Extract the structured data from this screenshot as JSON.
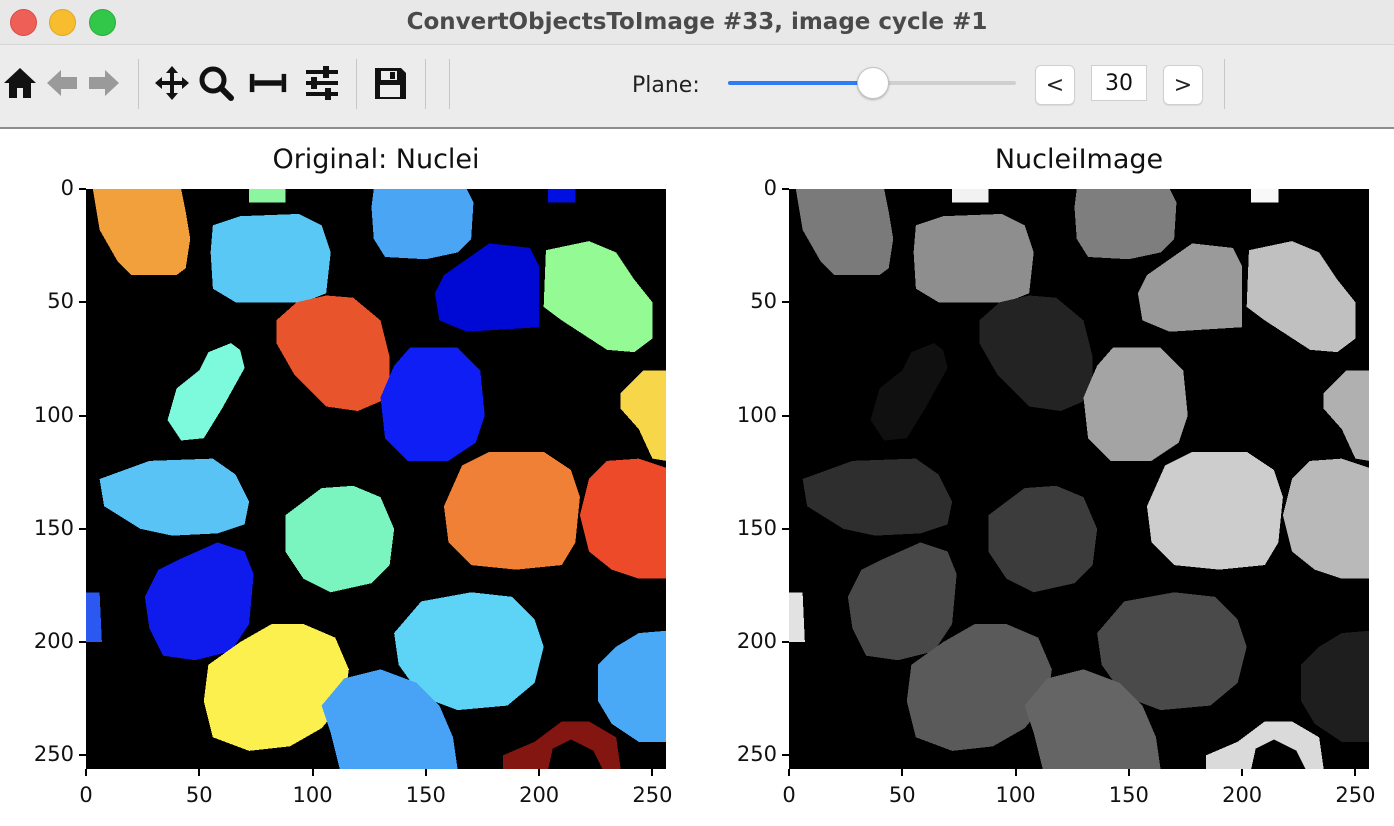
{
  "window": {
    "title": "ConvertObjectsToImage #33, image cycle #1"
  },
  "toolbar": {
    "icons": [
      "home-icon",
      "back-arrow-icon",
      "forward-arrow-icon",
      "pan-icon",
      "zoom-icon",
      "subplots-icon",
      "configure-icon",
      "save-icon"
    ],
    "plane_label": "Plane:",
    "plane_value": "30",
    "prev_label": "<",
    "next_label": ">",
    "slider_fraction": 0.5
  },
  "panels": [
    {
      "title": "Original: Nuclei",
      "colormap": "jet"
    },
    {
      "title": "NucleiImage",
      "colormap": "gray"
    }
  ],
  "axes": {
    "x_ticks": [
      "0",
      "50",
      "100",
      "150",
      "200",
      "250"
    ],
    "y_ticks": [
      "0",
      "50",
      "100",
      "150",
      "200",
      "250"
    ]
  },
  "objects": [
    {
      "label": 1,
      "color": "#f2a03c",
      "gray": "#7a7a7a"
    },
    {
      "label": 2,
      "color": "#5ac8f5",
      "gray": "#8e8e8e"
    },
    {
      "label": 3,
      "color": "#4aa5f5",
      "gray": "#7e7e7e"
    },
    {
      "label": 4,
      "color": "#0008d4",
      "gray": "#9a9a9a"
    },
    {
      "label": 5,
      "color": "#94fa94",
      "gray": "#c0c0c0"
    },
    {
      "label": 6,
      "color": "#e8552c",
      "gray": "#232323"
    },
    {
      "label": 7,
      "color": "#7dfadc",
      "gray": "#101010"
    },
    {
      "label": 8,
      "color": "#0e1ef5",
      "gray": "#a4a4a4"
    },
    {
      "label": 9,
      "color": "#f8d64a",
      "gray": "#b0b0b0"
    },
    {
      "label": 10,
      "color": "#58c3f4",
      "gray": "#2e2e2e"
    },
    {
      "label": 11,
      "color": "#7af5c0",
      "gray": "#3c3c3c"
    },
    {
      "label": 12,
      "color": "#f08035",
      "gray": "#cdcdcd"
    },
    {
      "label": 13,
      "color": "#ec4a28",
      "gray": "#b9b9b9"
    },
    {
      "label": 14,
      "color": "#0f1aed",
      "gray": "#484848"
    },
    {
      "label": 15,
      "color": "#fbf04e",
      "gray": "#5a5a5a"
    },
    {
      "label": 16,
      "color": "#5dd4f6",
      "gray": "#4a4a4a"
    },
    {
      "label": 17,
      "color": "#48a2f6",
      "gray": "#656565"
    },
    {
      "label": 18,
      "color": "#4aa9f6",
      "gray": "#1e1e1e"
    },
    {
      "label": 19,
      "color": "#841612",
      "gray": "#dadada"
    },
    {
      "label": 20,
      "color": "#2a58f0",
      "gray": "#e2e2e2"
    },
    {
      "label": 21,
      "color": "#8cf5a0",
      "gray": "#f2f2f2"
    },
    {
      "label": 22,
      "color": "#0010e0",
      "gray": "#f8f8f8"
    }
  ]
}
